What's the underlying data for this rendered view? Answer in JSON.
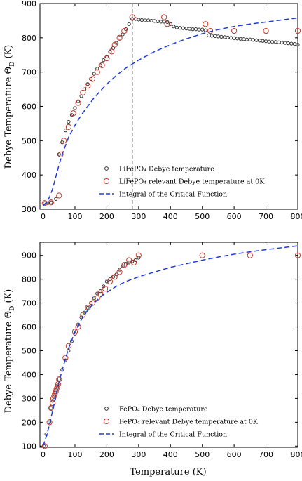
{
  "figure": {
    "x_axis_label": "Temperature (K)",
    "y_axis_label": "Debye Temperature Θ_D (K)"
  },
  "chart_data": [
    {
      "type": "scatter",
      "xlim": [
        -10,
        800
      ],
      "ylim": [
        300,
        900
      ],
      "x_ticks": [
        "0",
        "100",
        "200",
        "300",
        "400",
        "500",
        "600",
        "700",
        "800"
      ],
      "y_ticks": [
        "300",
        "400",
        "500",
        "600",
        "700",
        "800",
        "900"
      ],
      "vline_x": 280,
      "legend_position": "bottom-right",
      "series": [
        {
          "name": "LiFePO4 Debye temperature",
          "legend_label": "LiFePO₄ Debye temperature",
          "color": "#333333",
          "marker": "small-open-circle",
          "x": [
            5,
            15,
            25,
            40,
            50,
            60,
            70,
            80,
            90,
            100,
            110,
            120,
            130,
            140,
            150,
            160,
            170,
            180,
            190,
            200,
            210,
            220,
            230,
            240,
            250,
            260,
            270,
            280,
            290,
            300,
            310,
            320,
            330,
            340,
            350,
            360,
            370,
            380,
            390,
            400,
            410,
            420,
            430,
            440,
            450,
            460,
            470,
            480,
            490,
            500,
            510,
            520,
            530,
            540,
            550,
            560,
            570,
            580,
            590,
            600,
            610,
            620,
            630,
            640,
            650,
            660,
            670,
            680,
            690,
            700,
            710,
            720,
            730,
            740,
            750,
            760,
            770,
            780,
            790,
            800
          ],
          "y": [
            318,
            318,
            320,
            330,
            460,
            495,
            530,
            555,
            575,
            595,
            615,
            630,
            650,
            665,
            680,
            695,
            710,
            720,
            735,
            745,
            760,
            770,
            785,
            800,
            810,
            825,
            840,
            855,
            855,
            853,
            852,
            851,
            851,
            850,
            849,
            848,
            847,
            847,
            846,
            840,
            833,
            830,
            829,
            828,
            827,
            826,
            825,
            825,
            824,
            824,
            822,
            807,
            806,
            805,
            804,
            803,
            802,
            801,
            800,
            799,
            798,
            797,
            796,
            795,
            795,
            794,
            793,
            792,
            791,
            790,
            789,
            788,
            788,
            787,
            786,
            785,
            784,
            783,
            782,
            780
          ]
        },
        {
          "name": "LiFePO4 relevant Debye temperature at 0K",
          "legend_label": "LiFePO₄ relevant Debye temperature at 0K",
          "color": "#c0392b",
          "marker": "open-circle",
          "x": [
            5,
            25,
            50,
            55,
            65,
            80,
            95,
            110,
            125,
            140,
            155,
            170,
            185,
            200,
            215,
            225,
            240,
            255,
            280,
            380,
            390,
            510,
            525,
            600,
            700,
            800
          ],
          "y": [
            318,
            320,
            340,
            460,
            500,
            540,
            580,
            610,
            640,
            660,
            680,
            700,
            720,
            740,
            760,
            780,
            800,
            820,
            860,
            860,
            840,
            840,
            820,
            820,
            820,
            820
          ]
        },
        {
          "name": "Integral of the Critical Function",
          "legend_label": "Integral of the Critical Function",
          "color": "#1f3bd9",
          "marker": "dashed-line",
          "x": [
            0,
            10,
            20,
            30,
            40,
            50,
            60,
            80,
            100,
            120,
            140,
            160,
            180,
            200,
            230,
            260,
            300,
            350,
            400,
            450,
            500,
            550,
            600,
            650,
            700,
            750,
            800
          ],
          "y": [
            310,
            320,
            335,
            360,
            395,
            430,
            460,
            510,
            545,
            575,
            600,
            625,
            645,
            665,
            690,
            712,
            735,
            760,
            780,
            797,
            812,
            824,
            833,
            840,
            846,
            852,
            858
          ]
        }
      ]
    },
    {
      "type": "scatter",
      "xlim": [
        -10,
        800
      ],
      "ylim": [
        95,
        955
      ],
      "x_ticks": [
        "0",
        "100",
        "200",
        "300",
        "400",
        "500",
        "600",
        "700",
        "800"
      ],
      "y_ticks": [
        "100",
        "200",
        "300",
        "400",
        "500",
        "600",
        "700",
        "800",
        "900"
      ],
      "legend_position": "bottom-right",
      "series": [
        {
          "name": "FePO4 Debye temperature",
          "legend_label": "FePO₄ Debye temperature",
          "color": "#333333",
          "marker": "small-open-circle",
          "x": [
            3,
            10,
            20,
            25,
            30,
            35,
            40,
            45,
            50,
            60,
            70,
            80,
            90,
            100,
            110,
            120,
            130,
            140,
            150,
            160,
            170,
            180,
            190,
            200,
            210,
            220,
            230,
            240,
            250,
            260,
            270,
            280,
            290,
            300
          ],
          "y": [
            100,
            150,
            200,
            260,
            290,
            310,
            330,
            350,
            380,
            420,
            460,
            500,
            540,
            570,
            610,
            640,
            660,
            680,
            700,
            720,
            740,
            750,
            770,
            790,
            800,
            810,
            820,
            840,
            855,
            865,
            870,
            875,
            880,
            890
          ]
        },
        {
          "name": "FePO4 relevant Debye temperature at 0K",
          "legend_label": "FePO₄ relevant Debye temperature at 0K",
          "color": "#c0392b",
          "marker": "open-circle",
          "x": [
            5,
            20,
            25,
            30,
            32,
            35,
            37,
            40,
            42,
            45,
            47,
            50,
            70,
            80,
            100,
            110,
            125,
            140,
            155,
            170,
            180,
            195,
            210,
            225,
            240,
            255,
            270,
            285,
            300,
            500,
            650,
            800
          ],
          "y": [
            100,
            200,
            260,
            280,
            300,
            310,
            320,
            330,
            340,
            350,
            360,
            380,
            470,
            520,
            580,
            600,
            650,
            680,
            700,
            720,
            740,
            760,
            790,
            810,
            830,
            860,
            880,
            870,
            900,
            900,
            900,
            900
          ]
        },
        {
          "name": "Integral of the Critical Function",
          "legend_label": "Integral of the Critical Function",
          "color": "#1f3bd9",
          "marker": "dashed-line",
          "x": [
            0,
            10,
            20,
            30,
            40,
            50,
            60,
            80,
            100,
            120,
            140,
            160,
            180,
            200,
            230,
            260,
            300,
            350,
            400,
            450,
            500,
            550,
            600,
            650,
            700,
            750,
            800
          ],
          "y": [
            100,
            140,
            190,
            250,
            310,
            370,
            420,
            510,
            580,
            630,
            670,
            700,
            725,
            745,
            770,
            790,
            810,
            830,
            850,
            865,
            880,
            893,
            905,
            915,
            924,
            932,
            940
          ]
        }
      ]
    }
  ]
}
